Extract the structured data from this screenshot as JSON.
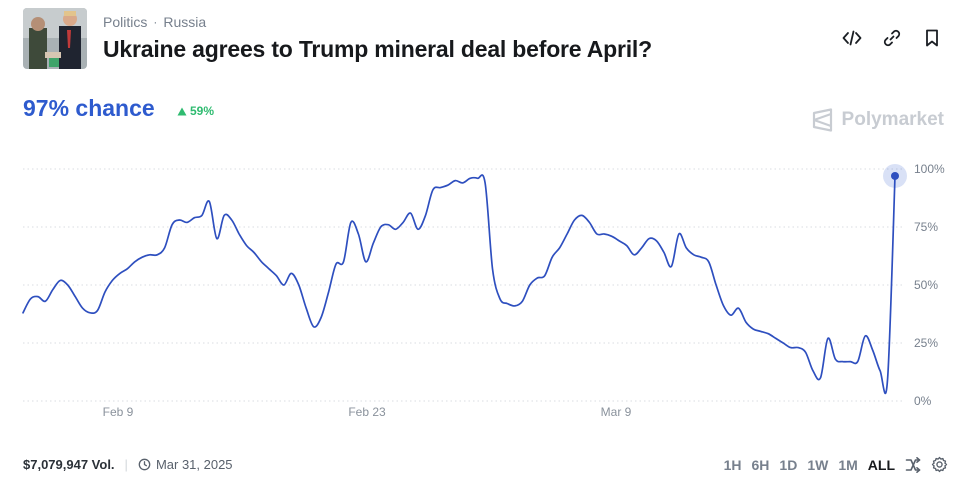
{
  "header": {
    "category": "Politics",
    "subcategory": "Russia",
    "title": "Ukraine agrees to Trump mineral deal before April?",
    "actions": [
      "embed-icon",
      "link-icon",
      "bookmark-icon"
    ]
  },
  "market": {
    "chance": "97% chance",
    "delta": "59%",
    "brand": "Polymarket"
  },
  "footer": {
    "volume": "$7,079,947 Vol.",
    "end_date": "Mar 31, 2025"
  },
  "ranges": [
    "1H",
    "6H",
    "1D",
    "1W",
    "1M",
    "ALL"
  ],
  "active_range": "ALL",
  "colors": {
    "line": "#2e4fbf",
    "accent": "#2e5bce",
    "up": "#2fbb70"
  },
  "chart_data": {
    "type": "line",
    "x_ticks": [
      "Feb 9",
      "Feb 23",
      "Mar 9"
    ],
    "y_ticks": [
      "0%",
      "25%",
      "50%",
      "75%",
      "100%"
    ],
    "ylim": [
      0,
      100
    ],
    "grid": true,
    "series": [
      {
        "values": [
          38,
          44,
          45,
          43,
          48,
          52,
          50,
          45,
          40,
          38,
          39,
          47,
          52,
          55,
          57,
          60,
          62,
          63,
          63,
          66,
          76,
          78,
          77,
          79,
          80,
          86,
          70,
          80,
          78,
          72,
          67,
          64,
          60,
          57,
          54,
          50,
          55,
          50,
          40,
          32,
          36,
          47,
          59,
          60,
          77,
          72,
          60,
          68,
          75,
          76,
          74,
          77,
          81,
          74,
          80,
          91,
          92,
          93,
          95,
          94,
          96,
          96,
          94,
          57,
          44,
          42,
          41,
          43,
          50,
          53,
          54,
          62,
          66,
          72,
          78,
          80,
          77,
          72,
          72,
          71,
          69,
          67,
          63,
          66,
          70,
          69,
          64,
          58,
          72,
          66,
          63,
          62,
          60,
          50,
          41,
          37,
          40,
          34,
          31,
          30,
          29,
          27,
          25,
          23,
          23,
          21,
          13,
          10,
          27,
          18,
          17,
          17,
          17,
          28,
          22,
          13,
          9,
          97
        ]
      }
    ]
  }
}
